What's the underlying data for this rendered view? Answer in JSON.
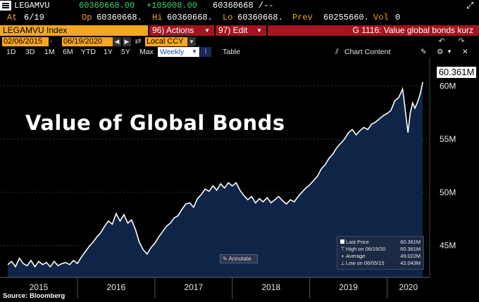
{
  "ticker_row": {
    "ticker": "LEGAMVU",
    "last": "60360668.00",
    "change": "+105008.00",
    "quote": "60360668 /--"
  },
  "detail_row": {
    "at_label": "At",
    "at_value": "6/19",
    "op_label": "Op",
    "op_value": "60360668.",
    "hi_label": "Hi",
    "hi_value": "60360668.",
    "lo_label": "Lo",
    "lo_value": "60360668.",
    "prev_label": "Prev",
    "prev_value": "60255660.",
    "vol_label": "Vol",
    "vol_value": "0"
  },
  "toolbar": {
    "security": "LEGAMVU Index",
    "actions": "96) Actions",
    "edit": "97) Edit",
    "page_title": "G 1116: Value global bonds kurz"
  },
  "date_row": {
    "start": "02/06/2015",
    "end": "06/19/2020",
    "currency": "Local CCY"
  },
  "ranges": {
    "items": [
      "1D",
      "3D",
      "1M",
      "6M",
      "YTD",
      "1Y",
      "5Y",
      "Max"
    ],
    "selected": "Weekly",
    "table": "Table",
    "chart_content": "Chart Content"
  },
  "chart_data": {
    "type": "area",
    "title": "Value of Global Bonds",
    "x_tick_labels": [
      "2015",
      "2016",
      "2017",
      "2018",
      "2019",
      "2020"
    ],
    "y_tick_labels": [
      "45M",
      "50M",
      "55M",
      "60M"
    ],
    "ylim": [
      42.0,
      61.8
    ],
    "series": [
      {
        "values": [
          [
            2015.1,
            43.2
          ],
          [
            2015.15,
            43.5
          ],
          [
            2015.2,
            43.0
          ],
          [
            2015.25,
            43.8
          ],
          [
            2015.3,
            43.3
          ],
          [
            2015.35,
            43.1
          ],
          [
            2015.4,
            43.6
          ],
          [
            2015.45,
            43.0
          ],
          [
            2015.5,
            43.5
          ],
          [
            2015.55,
            43.2
          ],
          [
            2015.6,
            43.4
          ],
          [
            2015.65,
            43.0
          ],
          [
            2015.7,
            43.5
          ],
          [
            2015.75,
            43.1
          ],
          [
            2015.8,
            43.3
          ],
          [
            2015.85,
            43.4
          ],
          [
            2015.9,
            43.2
          ],
          [
            2015.95,
            43.6
          ],
          [
            2016.0,
            43.3
          ],
          [
            2016.05,
            43.9
          ],
          [
            2016.1,
            44.4
          ],
          [
            2016.15,
            44.9
          ],
          [
            2016.2,
            45.3
          ],
          [
            2016.25,
            45.8
          ],
          [
            2016.3,
            46.2
          ],
          [
            2016.35,
            46.8
          ],
          [
            2016.4,
            47.3
          ],
          [
            2016.45,
            47.0
          ],
          [
            2016.5,
            48.0
          ],
          [
            2016.55,
            47.3
          ],
          [
            2016.6,
            47.9
          ],
          [
            2016.65,
            47.1
          ],
          [
            2016.7,
            47.4
          ],
          [
            2016.75,
            46.5
          ],
          [
            2016.8,
            45.3
          ],
          [
            2016.85,
            44.6
          ],
          [
            2016.9,
            44.2
          ],
          [
            2016.95,
            44.8
          ],
          [
            2017.0,
            45.2
          ],
          [
            2017.05,
            45.8
          ],
          [
            2017.1,
            46.3
          ],
          [
            2017.15,
            46.8
          ],
          [
            2017.2,
            47.1
          ],
          [
            2017.25,
            47.6
          ],
          [
            2017.3,
            47.8
          ],
          [
            2017.35,
            48.4
          ],
          [
            2017.4,
            48.9
          ],
          [
            2017.45,
            49.0
          ],
          [
            2017.5,
            48.6
          ],
          [
            2017.55,
            49.4
          ],
          [
            2017.6,
            49.8
          ],
          [
            2017.65,
            50.3
          ],
          [
            2017.7,
            50.1
          ],
          [
            2017.75,
            50.6
          ],
          [
            2017.8,
            50.2
          ],
          [
            2017.85,
            50.8
          ],
          [
            2017.9,
            50.4
          ],
          [
            2017.95,
            50.9
          ],
          [
            2018.0,
            50.6
          ],
          [
            2018.05,
            50.9
          ],
          [
            2018.1,
            50.2
          ],
          [
            2018.15,
            49.7
          ],
          [
            2018.2,
            49.3
          ],
          [
            2018.25,
            49.6
          ],
          [
            2018.3,
            49.0
          ],
          [
            2018.35,
            49.4
          ],
          [
            2018.4,
            49.1
          ],
          [
            2018.45,
            49.5
          ],
          [
            2018.5,
            49.0
          ],
          [
            2018.55,
            49.3
          ],
          [
            2018.6,
            49.6
          ],
          [
            2018.65,
            49.2
          ],
          [
            2018.7,
            48.9
          ],
          [
            2018.75,
            49.3
          ],
          [
            2018.8,
            49.1
          ],
          [
            2018.85,
            49.6
          ],
          [
            2018.9,
            50.0
          ],
          [
            2018.95,
            50.4
          ],
          [
            2019.0,
            50.7
          ],
          [
            2019.05,
            51.1
          ],
          [
            2019.1,
            51.5
          ],
          [
            2019.15,
            52.2
          ],
          [
            2019.2,
            52.6
          ],
          [
            2019.25,
            53.2
          ],
          [
            2019.3,
            53.6
          ],
          [
            2019.35,
            54.2
          ],
          [
            2019.4,
            54.6
          ],
          [
            2019.45,
            55.0
          ],
          [
            2019.5,
            55.6
          ],
          [
            2019.55,
            55.9
          ],
          [
            2019.6,
            55.4
          ],
          [
            2019.65,
            55.8
          ],
          [
            2019.7,
            56.1
          ],
          [
            2019.75,
            55.9
          ],
          [
            2019.8,
            56.4
          ],
          [
            2019.85,
            56.6
          ],
          [
            2019.9,
            56.9
          ],
          [
            2019.95,
            57.2
          ],
          [
            2020.0,
            57.4
          ],
          [
            2020.05,
            57.7
          ],
          [
            2020.1,
            58.6
          ],
          [
            2020.15,
            58.9
          ],
          [
            2020.2,
            59.7
          ],
          [
            2020.22,
            58.6
          ],
          [
            2020.25,
            56.8
          ],
          [
            2020.27,
            55.6
          ],
          [
            2020.3,
            57.5
          ],
          [
            2020.33,
            58.4
          ],
          [
            2020.36,
            57.9
          ],
          [
            2020.4,
            58.6
          ],
          [
            2020.43,
            59.3
          ],
          [
            2020.46,
            60.361
          ]
        ]
      }
    ]
  },
  "last_value_box": "60.361M",
  "legend": {
    "rows": [
      {
        "label": "Last Price",
        "value": "60.361M"
      },
      {
        "label": "High on 06/19/20",
        "value": "60.361M"
      },
      {
        "label": "Average",
        "value": "49.022M"
      },
      {
        "label": "Low on 06/05/15",
        "value": "42.043M"
      }
    ]
  },
  "annotate_label": "Annotate",
  "source": "Source: Bloomberg"
}
